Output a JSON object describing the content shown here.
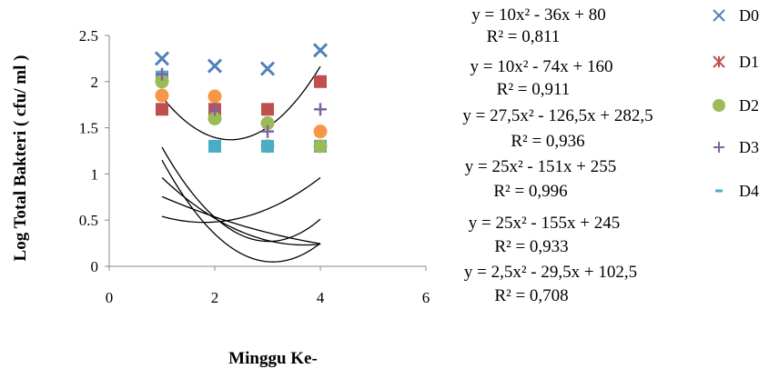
{
  "chart_data": {
    "type": "scatter",
    "xlabel": "Minggu Ke-",
    "ylabel": "Log Total Bakteri ( cfu/ ml )",
    "xlim": [
      0,
      6
    ],
    "ylim": [
      0,
      2.5
    ],
    "xticks": [
      "0",
      "2",
      "4",
      "6"
    ],
    "yticks": [
      "0",
      "0.5",
      "1",
      "1.5",
      "2",
      "2.5"
    ],
    "series": [
      {
        "name": "D0",
        "marker": "x",
        "color": "#4f81bd",
        "x": [
          1,
          2,
          3,
          4
        ],
        "y": [
          2.25,
          2.17,
          2.14,
          2.34
        ]
      },
      {
        "name": "D1",
        "marker": "square",
        "color": "#c0504d",
        "x": [
          1,
          2,
          3,
          4
        ],
        "y": [
          1.7,
          1.7,
          1.7,
          2.0
        ]
      },
      {
        "name": "D2",
        "marker": "circle",
        "color": "#9bbb59",
        "x": [
          1,
          2,
          3,
          4
        ],
        "y": [
          2.0,
          1.6,
          1.55,
          1.3
        ]
      },
      {
        "name": "D3",
        "marker": "plus",
        "color": "#8064a2",
        "x": [
          1,
          2,
          3,
          4
        ],
        "y": [
          2.08,
          1.7,
          1.46,
          1.7
        ]
      },
      {
        "name": "D4",
        "marker": "square",
        "color": "#4bacc6",
        "x": [
          1,
          2,
          3,
          4
        ],
        "y": [
          2.05,
          1.3,
          1.3,
          1.3
        ]
      },
      {
        "name": "",
        "marker": "circle",
        "color": "#f79646",
        "x": [
          1,
          2,
          3,
          4
        ],
        "y": [
          1.85,
          1.84,
          1.3,
          1.46
        ]
      }
    ],
    "trendlines": [
      {
        "a": 0.1,
        "b": -0.36,
        "c": 0.8,
        "x_range": [
          1,
          4
        ]
      },
      {
        "a": 0.1,
        "b": -0.74,
        "c": 1.6,
        "x_range": [
          1,
          4
        ]
      },
      {
        "a": 0.275,
        "b": -1.265,
        "c": 2.825,
        "x_range": [
          1,
          4
        ]
      },
      {
        "a": 0.25,
        "b": -1.51,
        "c": 2.55,
        "x_range": [
          1,
          4
        ]
      },
      {
        "a": 0.25,
        "b": -1.55,
        "c": 2.45,
        "x_range": [
          1,
          4
        ]
      },
      {
        "a": 0.025,
        "b": -0.295,
        "c": 1.025,
        "x_range": [
          1,
          4
        ]
      }
    ],
    "equations": [
      {
        "eq": "y = 10x² - 36x + 80",
        "r2": "R² = 0,811"
      },
      {
        "eq": "y = 10x² - 74x + 160",
        "r2": "R² = 0,911"
      },
      {
        "eq": "y = 27,5x² - 126,5x + 282,5",
        "r2": "R² = 0,936"
      },
      {
        "eq": "y = 25x² - 151x + 255",
        "r2": "R² = 0,996"
      },
      {
        "eq": "y = 25x² - 155x + 245",
        "r2": "R² = 0,933"
      },
      {
        "eq": "y = 2,5x² - 29,5x + 102,5",
        "r2": "R² = 0,708"
      }
    ],
    "legend": [
      "D0",
      "D1",
      "D2",
      "D3",
      "D4"
    ],
    "legend_position": "right",
    "grid": false
  }
}
